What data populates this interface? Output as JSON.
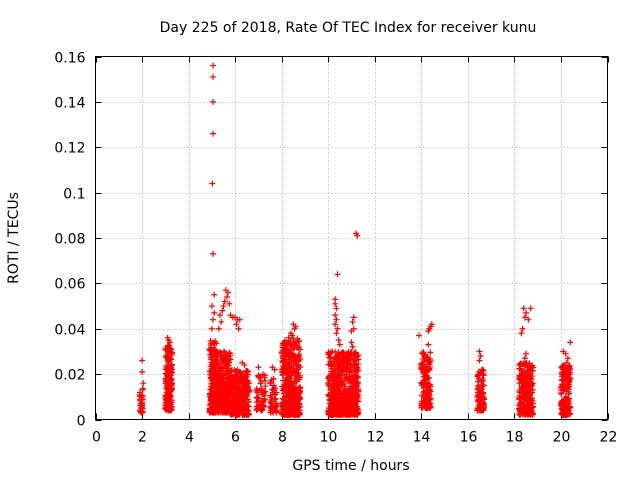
{
  "chart_data": {
    "type": "scatter",
    "title": "Day 225 of 2018, Rate Of TEC Index for receiver kunu",
    "xlabel": "GPS time / hours",
    "ylabel": "ROTI / TECUs",
    "xlim": [
      0,
      22
    ],
    "ylim": [
      0,
      0.16
    ],
    "xticks": [
      "0",
      "2",
      "4",
      "6",
      "8",
      "10",
      "12",
      "14",
      "16",
      "18",
      "20",
      "22"
    ],
    "yticks": [
      "0",
      "0.02",
      "0.04",
      "0.06",
      "0.08",
      "0.1",
      "0.12",
      "0.14",
      "0.16"
    ],
    "grid": true,
    "marker": "plus",
    "marker_color": "#ff0000",
    "clusters": [
      {
        "x": [
          1.9,
          2.05
        ],
        "y": [
          0.003,
          0.014
        ],
        "n": 30
      },
      {
        "x": [
          3.0,
          3.3
        ],
        "y": [
          0.004,
          0.033
        ],
        "n": 180
      },
      {
        "x": [
          4.9,
          5.2
        ],
        "y": [
          0.003,
          0.035
        ],
        "n": 200
      },
      {
        "x": [
          5.2,
          5.8
        ],
        "y": [
          0.003,
          0.03
        ],
        "n": 320
      },
      {
        "x": [
          5.8,
          6.6
        ],
        "y": [
          0.002,
          0.022
        ],
        "n": 320
      },
      {
        "x": [
          6.9,
          7.3
        ],
        "y": [
          0.004,
          0.02
        ],
        "n": 60
      },
      {
        "x": [
          7.5,
          7.8
        ],
        "y": [
          0.003,
          0.018
        ],
        "n": 50
      },
      {
        "x": [
          8.0,
          8.8
        ],
        "y": [
          0.002,
          0.036
        ],
        "n": 420
      },
      {
        "x": [
          10.0,
          10.8
        ],
        "y": [
          0.002,
          0.03
        ],
        "n": 380
      },
      {
        "x": [
          10.8,
          11.3
        ],
        "y": [
          0.002,
          0.03
        ],
        "n": 220
      },
      {
        "x": [
          14.0,
          14.4
        ],
        "y": [
          0.005,
          0.03
        ],
        "n": 160
      },
      {
        "x": [
          16.4,
          16.7
        ],
        "y": [
          0.004,
          0.022
        ],
        "n": 100
      },
      {
        "x": [
          18.2,
          18.8
        ],
        "y": [
          0.002,
          0.025
        ],
        "n": 240
      },
      {
        "x": [
          20.0,
          20.4
        ],
        "y": [
          0.002,
          0.024
        ],
        "n": 160
      }
    ],
    "points": [
      {
        "x": 5.05,
        "y": 0.156
      },
      {
        "x": 5.05,
        "y": 0.151
      },
      {
        "x": 5.05,
        "y": 0.14
      },
      {
        "x": 5.05,
        "y": 0.126
      },
      {
        "x": 5.02,
        "y": 0.104
      },
      {
        "x": 5.05,
        "y": 0.073
      },
      {
        "x": 5.1,
        "y": 0.055
      },
      {
        "x": 5.0,
        "y": 0.05
      },
      {
        "x": 5.1,
        "y": 0.047
      },
      {
        "x": 5.05,
        "y": 0.044
      },
      {
        "x": 5.0,
        "y": 0.04
      },
      {
        "x": 5.6,
        "y": 0.057
      },
      {
        "x": 5.7,
        "y": 0.056
      },
      {
        "x": 5.65,
        "y": 0.054
      },
      {
        "x": 5.55,
        "y": 0.052
      },
      {
        "x": 5.5,
        "y": 0.05
      },
      {
        "x": 5.45,
        "y": 0.048
      },
      {
        "x": 5.35,
        "y": 0.046
      },
      {
        "x": 5.4,
        "y": 0.043
      },
      {
        "x": 5.3,
        "y": 0.04
      },
      {
        "x": 5.75,
        "y": 0.051
      },
      {
        "x": 5.8,
        "y": 0.046
      },
      {
        "x": 5.9,
        "y": 0.045
      },
      {
        "x": 6.0,
        "y": 0.045
      },
      {
        "x": 6.1,
        "y": 0.044
      },
      {
        "x": 6.2,
        "y": 0.044
      },
      {
        "x": 6.05,
        "y": 0.042
      },
      {
        "x": 6.15,
        "y": 0.04
      },
      {
        "x": 6.3,
        "y": 0.025
      },
      {
        "x": 6.4,
        "y": 0.024
      },
      {
        "x": 7.0,
        "y": 0.023
      },
      {
        "x": 7.6,
        "y": 0.023
      },
      {
        "x": 7.7,
        "y": 0.022
      },
      {
        "x": 8.5,
        "y": 0.042
      },
      {
        "x": 8.6,
        "y": 0.041
      },
      {
        "x": 8.55,
        "y": 0.04
      },
      {
        "x": 8.4,
        "y": 0.038
      },
      {
        "x": 8.45,
        "y": 0.037
      },
      {
        "x": 8.3,
        "y": 0.036
      },
      {
        "x": 10.4,
        "y": 0.064
      },
      {
        "x": 10.3,
        "y": 0.053
      },
      {
        "x": 10.3,
        "y": 0.051
      },
      {
        "x": 10.35,
        "y": 0.049
      },
      {
        "x": 10.3,
        "y": 0.046
      },
      {
        "x": 10.35,
        "y": 0.044
      },
      {
        "x": 10.3,
        "y": 0.042
      },
      {
        "x": 10.4,
        "y": 0.04
      },
      {
        "x": 10.35,
        "y": 0.038
      },
      {
        "x": 10.45,
        "y": 0.035
      },
      {
        "x": 10.5,
        "y": 0.033
      },
      {
        "x": 11.2,
        "y": 0.082
      },
      {
        "x": 11.25,
        "y": 0.081
      },
      {
        "x": 11.1,
        "y": 0.045
      },
      {
        "x": 11.05,
        "y": 0.043
      },
      {
        "x": 11.1,
        "y": 0.04
      },
      {
        "x": 11.0,
        "y": 0.039
      },
      {
        "x": 11.0,
        "y": 0.034
      },
      {
        "x": 11.05,
        "y": 0.032
      },
      {
        "x": 14.45,
        "y": 0.042
      },
      {
        "x": 14.4,
        "y": 0.041
      },
      {
        "x": 14.35,
        "y": 0.04
      },
      {
        "x": 14.3,
        "y": 0.039
      },
      {
        "x": 13.9,
        "y": 0.037
      },
      {
        "x": 14.3,
        "y": 0.033
      },
      {
        "x": 16.5,
        "y": 0.03
      },
      {
        "x": 16.55,
        "y": 0.028
      },
      {
        "x": 16.5,
        "y": 0.026
      },
      {
        "x": 18.4,
        "y": 0.049
      },
      {
        "x": 18.7,
        "y": 0.049
      },
      {
        "x": 18.5,
        "y": 0.047
      },
      {
        "x": 18.45,
        "y": 0.045
      },
      {
        "x": 18.6,
        "y": 0.044
      },
      {
        "x": 18.35,
        "y": 0.04
      },
      {
        "x": 18.3,
        "y": 0.038
      },
      {
        "x": 18.5,
        "y": 0.029
      },
      {
        "x": 18.45,
        "y": 0.027
      },
      {
        "x": 20.4,
        "y": 0.034
      },
      {
        "x": 20.1,
        "y": 0.03
      },
      {
        "x": 20.2,
        "y": 0.029
      },
      {
        "x": 20.3,
        "y": 0.027
      },
      {
        "x": 20.25,
        "y": 0.025
      },
      {
        "x": 2.0,
        "y": 0.026
      },
      {
        "x": 2.0,
        "y": 0.021
      },
      {
        "x": 2.05,
        "y": 0.016
      },
      {
        "x": 3.1,
        "y": 0.036
      },
      {
        "x": 3.15,
        "y": 0.035
      },
      {
        "x": 3.2,
        "y": 0.034
      }
    ]
  }
}
